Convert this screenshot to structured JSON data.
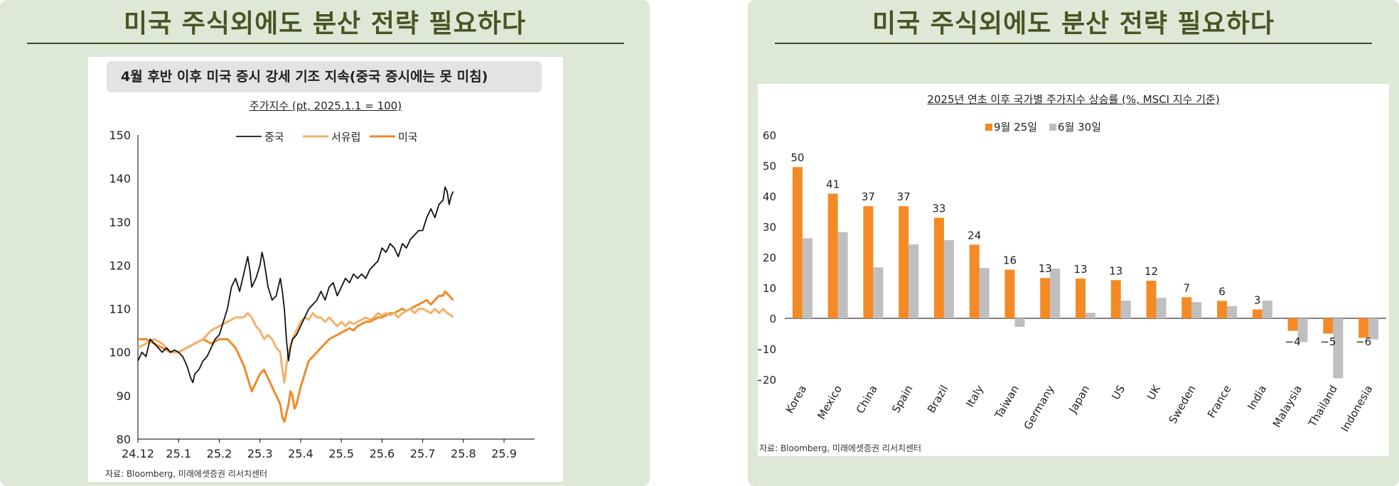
{
  "left_panel": {
    "title": "미국 주식외에도 분산 전략 필요하다",
    "header": "4월 후반 이후 미국 증시 강세 기조 지속(중국 증시에는 못 미침)",
    "subtitle": "주가지수 (pt, 2025.1.1 = 100)",
    "source": "자료: Bloomberg, 미래에셋증권 리서치센터"
  },
  "right_panel": {
    "title": "미국 주식외에도 분산 전략 필요하다",
    "subtitle": "2025년 연초 이후 국가별 주가지수 상승률 (%, MSCI 지수 기준)",
    "source": "자료: Bloomberg, 미래에셋증권 리서치센터"
  },
  "colors": {
    "china": "#111111",
    "west_europe": "#f2b26a",
    "usa": "#ee8a2a",
    "sep25": "#f48a26",
    "jun30": "#bfbfbf"
  },
  "chart_data": [
    {
      "type": "line",
      "title": "주가지수 (pt, 2025.1.1 = 100)",
      "x_ticks": [
        "24.12",
        "25.1",
        "25.2",
        "25.3",
        "25.4",
        "25.5",
        "25.6",
        "25.7",
        "25.8",
        "25.9"
      ],
      "ylim": [
        80,
        150
      ],
      "y_ticks": [
        80,
        90,
        100,
        110,
        120,
        130,
        140,
        150
      ],
      "legend": "top-center",
      "series": [
        {
          "name": "중국",
          "color": "#111111",
          "points": [
            [
              0,
              98
            ],
            [
              0.1,
              100
            ],
            [
              0.2,
              99
            ],
            [
              0.3,
              103
            ],
            [
              0.4,
              102
            ],
            [
              0.5,
              101
            ],
            [
              0.6,
              100
            ],
            [
              0.7,
              101
            ],
            [
              0.8,
              100
            ],
            [
              0.9,
              100.5
            ],
            [
              1.0,
              100
            ],
            [
              1.1,
              99
            ],
            [
              1.2,
              97
            ],
            [
              1.3,
              94
            ],
            [
              1.35,
              93
            ],
            [
              1.4,
              95
            ],
            [
              1.5,
              96
            ],
            [
              1.6,
              98
            ],
            [
              1.7,
              99
            ],
            [
              1.8,
              101
            ],
            [
              1.9,
              103
            ],
            [
              2.0,
              104
            ],
            [
              2.1,
              107
            ],
            [
              2.2,
              110
            ],
            [
              2.3,
              115
            ],
            [
              2.4,
              117
            ],
            [
              2.5,
              114
            ],
            [
              2.6,
              118
            ],
            [
              2.7,
              122
            ],
            [
              2.75,
              119
            ],
            [
              2.8,
              115
            ],
            [
              2.9,
              117
            ],
            [
              3.0,
              120
            ],
            [
              3.05,
              123
            ],
            [
              3.1,
              121
            ],
            [
              3.2,
              115
            ],
            [
              3.3,
              112
            ],
            [
              3.4,
              113
            ],
            [
              3.5,
              117
            ],
            [
              3.55,
              114
            ],
            [
              3.6,
              110
            ],
            [
              3.65,
              103
            ],
            [
              3.7,
              98
            ],
            [
              3.75,
              101
            ],
            [
              3.8,
              103
            ],
            [
              3.9,
              104
            ],
            [
              4.0,
              106
            ],
            [
              4.1,
              108
            ],
            [
              4.2,
              110
            ],
            [
              4.3,
              111
            ],
            [
              4.4,
              112
            ],
            [
              4.5,
              114
            ],
            [
              4.6,
              112
            ],
            [
              4.7,
              115
            ],
            [
              4.8,
              116
            ],
            [
              4.9,
              113
            ],
            [
              5.0,
              115
            ],
            [
              5.1,
              117
            ],
            [
              5.2,
              116
            ],
            [
              5.3,
              118
            ],
            [
              5.4,
              117
            ],
            [
              5.5,
              118
            ],
            [
              5.6,
              117
            ],
            [
              5.7,
              119
            ],
            [
              5.8,
              120
            ],
            [
              5.9,
              121
            ],
            [
              6.0,
              124
            ],
            [
              6.1,
              123
            ],
            [
              6.2,
              125
            ],
            [
              6.3,
              124
            ],
            [
              6.4,
              122
            ],
            [
              6.5,
              125
            ],
            [
              6.6,
              124
            ],
            [
              6.7,
              126
            ],
            [
              6.8,
              127
            ],
            [
              6.9,
              128
            ],
            [
              7.0,
              128
            ],
            [
              7.1,
              131
            ],
            [
              7.2,
              133
            ],
            [
              7.3,
              131
            ],
            [
              7.4,
              134
            ],
            [
              7.5,
              135
            ],
            [
              7.55,
              138
            ],
            [
              7.6,
              137
            ],
            [
              7.65,
              134
            ],
            [
              7.7,
              136
            ],
            [
              7.75,
              137
            ]
          ]
        },
        {
          "name": "서유럽",
          "color": "#f2b26a",
          "points": [
            [
              0,
              101
            ],
            [
              0.2,
              102
            ],
            [
              0.4,
              103
            ],
            [
              0.6,
              102
            ],
            [
              0.8,
              100
            ],
            [
              1.0,
              100
            ],
            [
              1.2,
              101
            ],
            [
              1.4,
              102
            ],
            [
              1.6,
              103
            ],
            [
              1.8,
              105
            ],
            [
              2.0,
              106
            ],
            [
              2.2,
              107
            ],
            [
              2.4,
              108
            ],
            [
              2.6,
              108
            ],
            [
              2.7,
              109
            ],
            [
              2.8,
              108
            ],
            [
              2.9,
              106
            ],
            [
              3.0,
              105
            ],
            [
              3.1,
              103
            ],
            [
              3.2,
              104
            ],
            [
              3.3,
              103
            ],
            [
              3.4,
              101
            ],
            [
              3.5,
              100
            ],
            [
              3.55,
              96
            ],
            [
              3.6,
              93
            ],
            [
              3.65,
              97
            ],
            [
              3.7,
              100
            ],
            [
              3.8,
              103
            ],
            [
              3.9,
              105
            ],
            [
              4.0,
              107
            ],
            [
              4.1,
              108
            ],
            [
              4.2,
              107.5
            ],
            [
              4.3,
              109
            ],
            [
              4.4,
              108
            ],
            [
              4.5,
              108
            ],
            [
              4.6,
              107
            ],
            [
              4.7,
              108
            ],
            [
              4.8,
              107
            ],
            [
              4.9,
              106
            ],
            [
              5.0,
              107
            ],
            [
              5.1,
              106
            ],
            [
              5.2,
              107
            ],
            [
              5.3,
              106.5
            ],
            [
              5.4,
              107
            ],
            [
              5.5,
              107.5
            ],
            [
              5.6,
              108
            ],
            [
              5.7,
              107.5
            ],
            [
              5.8,
              108
            ],
            [
              5.9,
              109
            ],
            [
              6.0,
              108.5
            ],
            [
              6.1,
              109
            ],
            [
              6.2,
              108.5
            ],
            [
              6.3,
              109
            ],
            [
              6.4,
              108
            ],
            [
              6.5,
              109
            ],
            [
              6.6,
              109.5
            ],
            [
              6.7,
              110
            ],
            [
              6.8,
              109
            ],
            [
              6.9,
              110
            ],
            [
              7.0,
              110
            ],
            [
              7.1,
              109.5
            ],
            [
              7.2,
              109
            ],
            [
              7.3,
              110
            ],
            [
              7.4,
              109
            ],
            [
              7.5,
              110
            ],
            [
              7.6,
              109
            ],
            [
              7.7,
              108.5
            ],
            [
              7.75,
              108
            ]
          ]
        },
        {
          "name": "미국",
          "color": "#ee8a2a",
          "points": [
            [
              0,
              103
            ],
            [
              0.2,
              103
            ],
            [
              0.4,
              102
            ],
            [
              0.6,
              101
            ],
            [
              0.8,
              100
            ],
            [
              1.0,
              100
            ],
            [
              1.2,
              101
            ],
            [
              1.4,
              102
            ],
            [
              1.6,
              103
            ],
            [
              1.8,
              102
            ],
            [
              2.0,
              103
            ],
            [
              2.2,
              103
            ],
            [
              2.4,
              101
            ],
            [
              2.5,
              99
            ],
            [
              2.6,
              97
            ],
            [
              2.7,
              94
            ],
            [
              2.8,
              91
            ],
            [
              2.9,
              93
            ],
            [
              3.0,
              95
            ],
            [
              3.1,
              96
            ],
            [
              3.2,
              94
            ],
            [
              3.3,
              92
            ],
            [
              3.4,
              90
            ],
            [
              3.5,
              88
            ],
            [
              3.55,
              85
            ],
            [
              3.6,
              84
            ],
            [
              3.65,
              86
            ],
            [
              3.7,
              88
            ],
            [
              3.75,
              91
            ],
            [
              3.8,
              90
            ],
            [
              3.85,
              87
            ],
            [
              3.9,
              88
            ],
            [
              4.0,
              92
            ],
            [
              4.1,
              95
            ],
            [
              4.2,
              98
            ],
            [
              4.3,
              99
            ],
            [
              4.4,
              100
            ],
            [
              4.5,
              101
            ],
            [
              4.6,
              102
            ],
            [
              4.7,
              103
            ],
            [
              4.8,
              103.5
            ],
            [
              4.9,
              104
            ],
            [
              5.0,
              104.5
            ],
            [
              5.1,
              105
            ],
            [
              5.2,
              105.5
            ],
            [
              5.3,
              105
            ],
            [
              5.4,
              106
            ],
            [
              5.5,
              106.5
            ],
            [
              5.6,
              107
            ],
            [
              5.7,
              107
            ],
            [
              5.8,
              107.5
            ],
            [
              5.9,
              108
            ],
            [
              6.0,
              108
            ],
            [
              6.1,
              108.5
            ],
            [
              6.2,
              109
            ],
            [
              6.3,
              109
            ],
            [
              6.4,
              109.5
            ],
            [
              6.5,
              110
            ],
            [
              6.6,
              109.5
            ],
            [
              6.7,
              110
            ],
            [
              6.8,
              110.5
            ],
            [
              6.9,
              111
            ],
            [
              7.0,
              111.5
            ],
            [
              7.1,
              112
            ],
            [
              7.2,
              111
            ],
            [
              7.3,
              112
            ],
            [
              7.4,
              113
            ],
            [
              7.5,
              113
            ],
            [
              7.55,
              114
            ],
            [
              7.6,
              113.5
            ],
            [
              7.65,
              113
            ],
            [
              7.7,
              112.5
            ],
            [
              7.75,
              112
            ]
          ]
        }
      ]
    },
    {
      "type": "bar",
      "title": "2025년 연초 이후 국가별 주가지수 상승률 (%, MSCI 지수 기준)",
      "categories": [
        "Korea",
        "Mexico",
        "China",
        "Spain",
        "Brazil",
        "Italy",
        "Taiwan",
        "Germany",
        "Japan",
        "US",
        "UK",
        "Sweden",
        "France",
        "India",
        "Malaysia",
        "Thailand",
        "Indonesia"
      ],
      "ylim": [
        -20,
        60
      ],
      "y_ticks": [
        -20,
        -10,
        0,
        10,
        20,
        30,
        40,
        50,
        60
      ],
      "legend": "top-center",
      "series": [
        {
          "name": "9월 25일",
          "color": "#f48a26",
          "values": [
            49.5,
            40.8,
            36.7,
            36.7,
            32.9,
            24.1,
            15.9,
            13.2,
            13.0,
            12.5,
            12.3,
            6.9,
            5.7,
            2.9,
            -4.1,
            -5.0,
            -6.4
          ],
          "labels": [
            "50",
            "41",
            "37",
            "37",
            "33",
            "24",
            "16",
            "13",
            "13",
            "13",
            "12",
            "7",
            "6",
            "3",
            "-4",
            "-5",
            "-6"
          ]
        },
        {
          "name": "6월 30일",
          "color": "#bfbfbf",
          "values": [
            26.2,
            28.2,
            16.7,
            24.2,
            25.6,
            16.5,
            -2.8,
            16.3,
            1.8,
            5.8,
            6.7,
            5.3,
            4.0,
            5.8,
            -7.8,
            -19.6,
            -6.9
          ]
        }
      ]
    }
  ]
}
